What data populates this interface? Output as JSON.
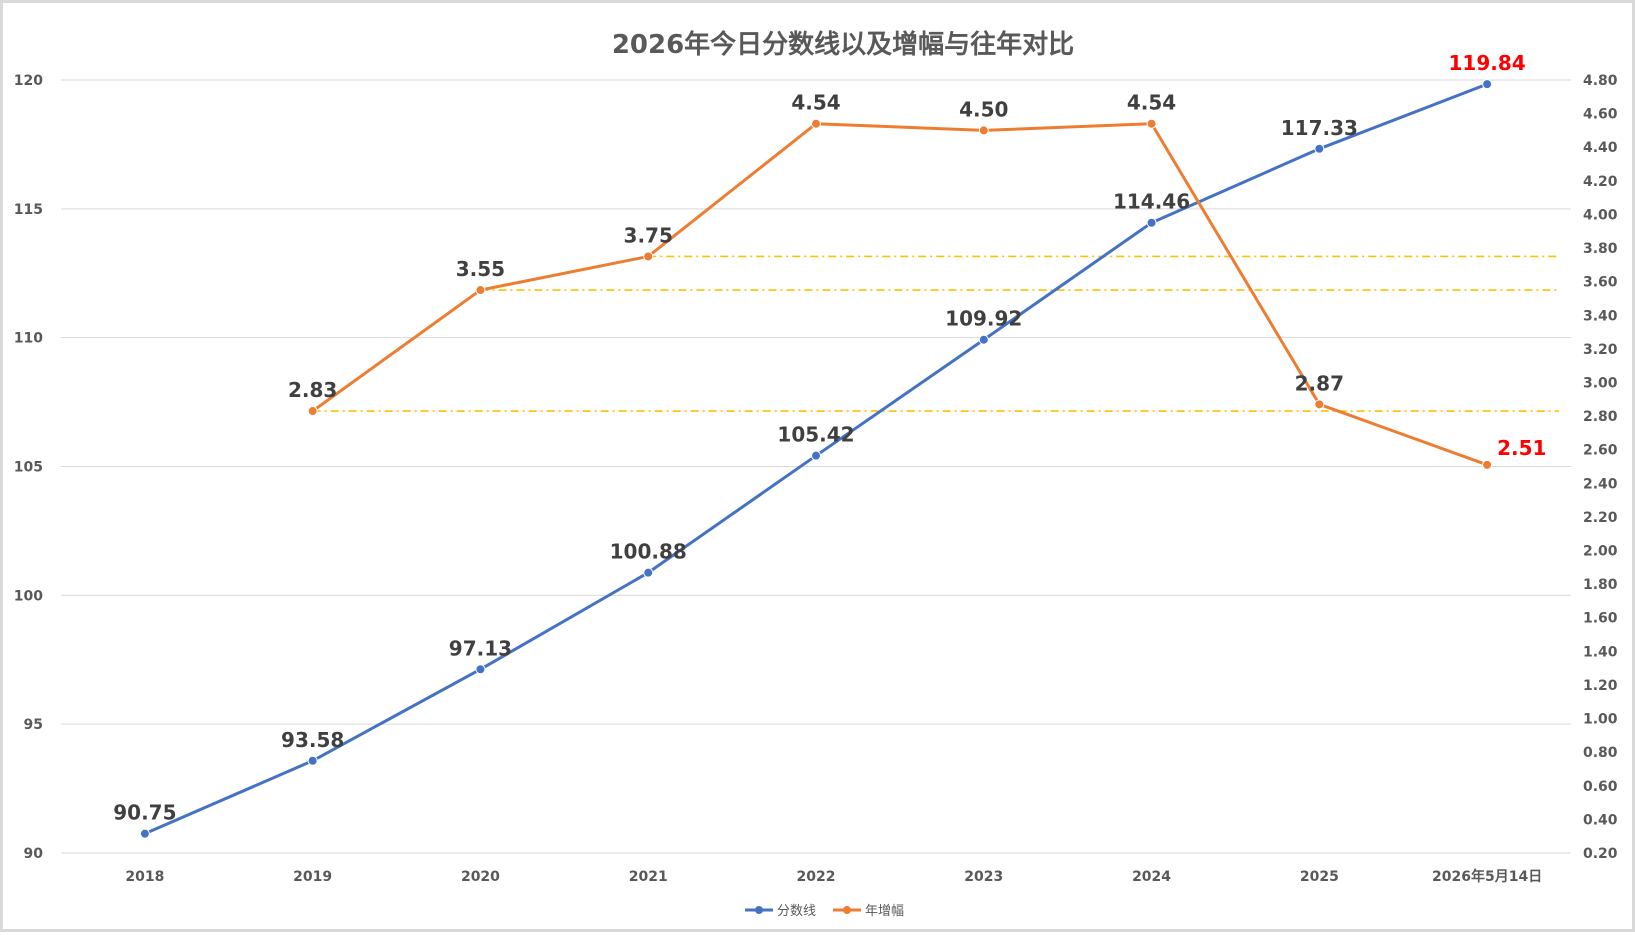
{
  "chart_data": {
    "type": "line",
    "title": "2026年今日分数线以及增幅与往年对比",
    "categories": [
      "2018",
      "2019",
      "2020",
      "2021",
      "2022",
      "2023",
      "2024",
      "2025",
      "2026年5月14日"
    ],
    "y_left": {
      "range": [
        90,
        120
      ],
      "ticks": [
        "90",
        "95",
        "100",
        "105",
        "110",
        "115",
        "120"
      ]
    },
    "y_right": {
      "range": [
        0.2,
        4.8
      ],
      "ticks": [
        "0.20",
        "0.40",
        "0.60",
        "0.80",
        "1.00",
        "1.20",
        "1.40",
        "1.60",
        "1.80",
        "2.00",
        "2.20",
        "2.40",
        "2.60",
        "2.80",
        "3.00",
        "3.20",
        "3.40",
        "3.60",
        "3.80",
        "4.00",
        "4.20",
        "4.40",
        "4.60",
        "4.80"
      ]
    },
    "grid": true,
    "legend_position": "bottom",
    "series": [
      {
        "name": "分数线",
        "axis": "left",
        "color": "#4472c4",
        "values": [
          90.75,
          93.58,
          97.13,
          100.88,
          105.42,
          109.92,
          114.46,
          117.33,
          119.84
        ],
        "labels": [
          "90.75",
          "93.58",
          "97.13",
          "100.88",
          "105.42",
          "109.92",
          "114.46",
          "117.33",
          "119.84"
        ],
        "highlight_last": true
      },
      {
        "name": "年增幅",
        "axis": "right",
        "color": "#ed7d31",
        "values": [
          null,
          2.83,
          3.55,
          3.75,
          4.54,
          4.5,
          4.54,
          2.87,
          2.51
        ],
        "labels": [
          "",
          "2.83",
          "3.55",
          "3.75",
          "4.54",
          "4.50",
          "4.54",
          "2.87",
          "2.51"
        ],
        "highlight_last": true
      }
    ],
    "reference_lines": [
      {
        "axis": "right",
        "value": 3.75,
        "from_category": 3,
        "color": "#ffc000",
        "style": "dash-dot"
      },
      {
        "axis": "right",
        "value": 3.55,
        "from_category": 2,
        "color": "#ffc000",
        "style": "dash-dot"
      },
      {
        "axis": "right",
        "value": 2.83,
        "from_category": 1,
        "color": "#ffc000",
        "style": "dash-dot"
      }
    ],
    "highlight_color": "#ff0000"
  }
}
